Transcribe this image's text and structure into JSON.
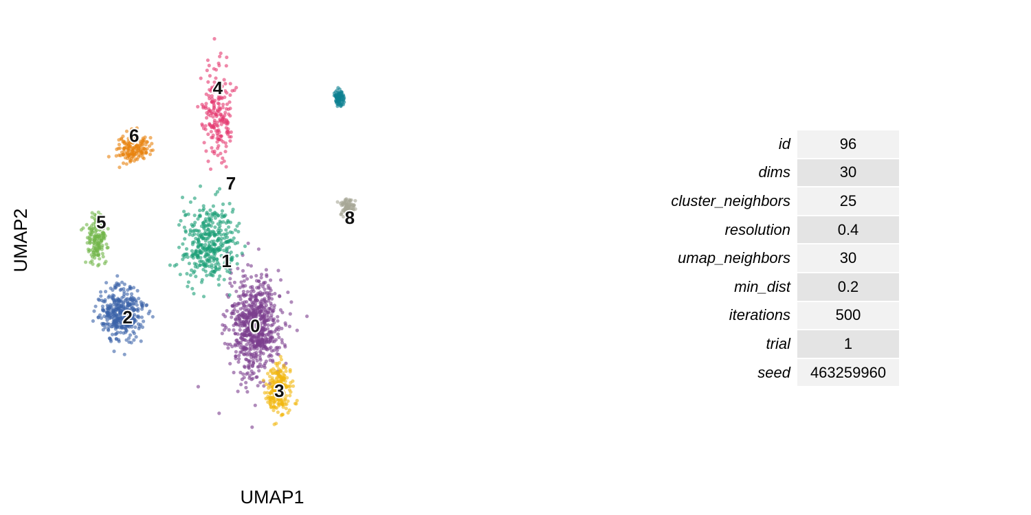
{
  "chart_data": {
    "type": "scatter",
    "xlabel": "UMAP1",
    "ylabel": "UMAP2",
    "xlim": [
      0,
      10
    ],
    "ylim": [
      0,
      10
    ],
    "grid": false,
    "legend": "none",
    "clusters": [
      {
        "label": "0",
        "color": "#7B3E8E",
        "center": [
          4.55,
          3.1
        ],
        "spread": [
          0.55,
          1.05
        ],
        "n": 700
      },
      {
        "label": "1",
        "color": "#1B9E77",
        "center": [
          3.5,
          5.0
        ],
        "spread": [
          0.55,
          0.8
        ],
        "n": 380
      },
      {
        "label": "2",
        "color": "#3B62A8",
        "center": [
          1.5,
          3.4
        ],
        "spread": [
          0.45,
          0.55
        ],
        "n": 380
      },
      {
        "label": "3",
        "color": "#F1B80F",
        "center": [
          5.1,
          1.65
        ],
        "spread": [
          0.25,
          0.5
        ],
        "n": 230
      },
      {
        "label": "4",
        "color": "#E5386F",
        "center": [
          3.7,
          8.0
        ],
        "spread": [
          0.3,
          0.95
        ],
        "n": 200
      },
      {
        "label": "5",
        "color": "#71B54A",
        "center": [
          0.95,
          5.1
        ],
        "spread": [
          0.2,
          0.5
        ],
        "n": 150
      },
      {
        "label": "6",
        "color": "#E8820E",
        "center": [
          1.75,
          7.2
        ],
        "spread": [
          0.35,
          0.3
        ],
        "n": 150
      },
      {
        "label": "7",
        "color": "#0E8191",
        "center": [
          6.45,
          8.35
        ],
        "spread": [
          0.1,
          0.18
        ],
        "n": 90
      },
      {
        "label": "8",
        "color": "#A6A796",
        "center": [
          6.65,
          5.85
        ],
        "spread": [
          0.14,
          0.18
        ],
        "n": 90
      }
    ],
    "label_positions": [
      {
        "label": "0",
        "x": 4.55,
        "y": 3.1
      },
      {
        "label": "1",
        "x": 3.9,
        "y": 4.6
      },
      {
        "label": "2",
        "x": 1.65,
        "y": 3.3
      },
      {
        "label": "3",
        "x": 5.1,
        "y": 1.6
      },
      {
        "label": "4",
        "x": 3.7,
        "y": 8.6
      },
      {
        "label": "5",
        "x": 1.05,
        "y": 5.5
      },
      {
        "label": "6",
        "x": 1.8,
        "y": 7.5
      },
      {
        "label": "7",
        "x": 4.0,
        "y": 6.4
      },
      {
        "label": "8",
        "x": 6.7,
        "y": 5.6
      }
    ]
  },
  "params": [
    {
      "name": "id",
      "value": "96"
    },
    {
      "name": "dims",
      "value": "30"
    },
    {
      "name": "cluster_neighbors",
      "value": "25"
    },
    {
      "name": "resolution",
      "value": "0.4"
    },
    {
      "name": "umap_neighbors",
      "value": "30"
    },
    {
      "name": "min_dist",
      "value": "0.2"
    },
    {
      "name": "iterations",
      "value": "500"
    },
    {
      "name": "trial",
      "value": "1"
    },
    {
      "name": "seed",
      "value": "463259960"
    }
  ]
}
